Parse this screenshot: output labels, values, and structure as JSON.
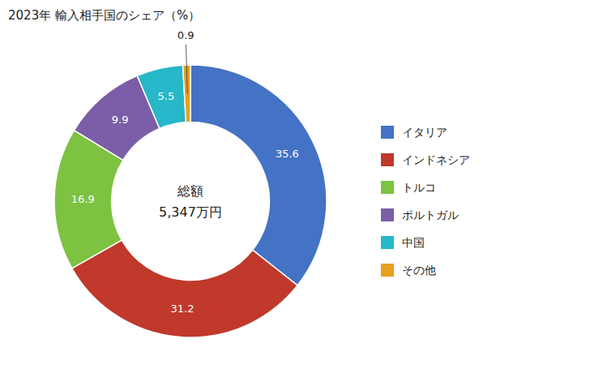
{
  "chart_data": {
    "type": "donut",
    "title": "2023年 輸入相手国のシェア（%）",
    "annotations": [
      "総額",
      "5,347万円"
    ],
    "categories": [
      "イタリア",
      "インドネシア",
      "トルコ",
      "ポルトガル",
      "中国",
      "その他"
    ],
    "values": [
      35.6,
      31.2,
      16.9,
      9.9,
      5.5,
      0.9
    ],
    "colors": [
      "#4472C4",
      "#C0392B",
      "#7DC241",
      "#7B5EA7",
      "#26B7C9",
      "#E8A020"
    ],
    "data_labels": true,
    "legend": "right"
  }
}
